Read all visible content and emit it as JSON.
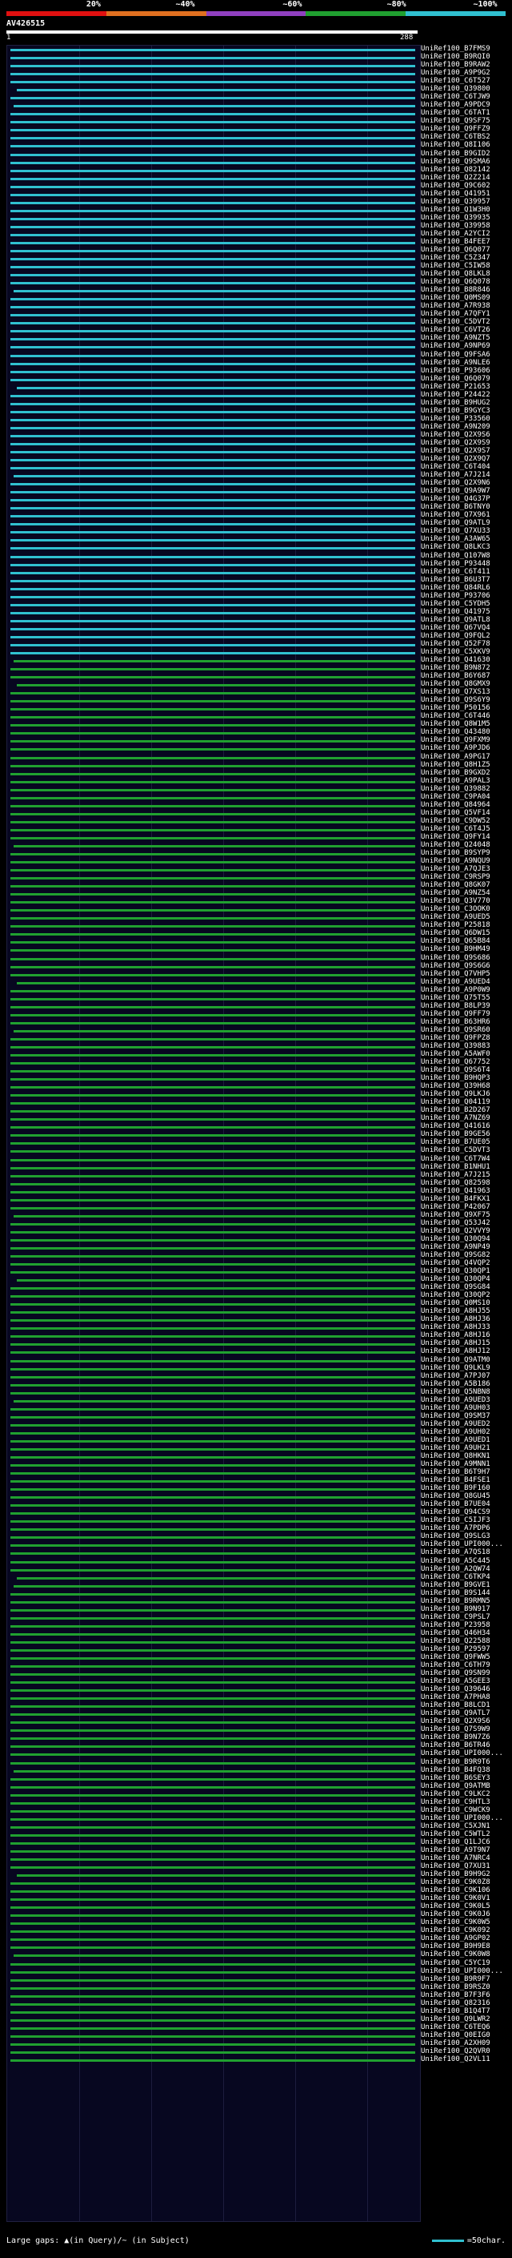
{
  "header": {
    "query_id": "AV426515",
    "query_start": "1",
    "query_end": "288",
    "percent_labels": [
      "20%",
      "~40%",
      "~60%",
      "~80%",
      "~100%"
    ],
    "percent_colors": [
      "#e01010",
      "#e07020",
      "#9040c0",
      "#20a030",
      "#30c0d0"
    ]
  },
  "hits": [
    {
      "label": "UniRef100_B7FMS9",
      "color": "#30c0d0"
    },
    {
      "label": "UniRef100_B9RQI0",
      "color": "#30c0d0"
    },
    {
      "label": "UniRef100_B9RAW2",
      "color": "#30c0d0"
    },
    {
      "label": "UniRef100_A9P9G2",
      "color": "#30c0d0"
    },
    {
      "label": "UniRef100_C6T527",
      "color": "#30c0d0"
    },
    {
      "label": "UniRef100_Q39800",
      "color": "#30c0d0"
    },
    {
      "label": "UniRef100_C6TJW9",
      "color": "#30c0d0"
    },
    {
      "label": "UniRef100_A9PDC9",
      "color": "#30c0d0"
    },
    {
      "label": "UniRef100_C6TAT1",
      "color": "#30c0d0"
    },
    {
      "label": "UniRef100_Q9SF75",
      "color": "#30c0d0"
    },
    {
      "label": "UniRef100_Q9FFZ9",
      "color": "#30c0d0"
    },
    {
      "label": "UniRef100_C6TBS2",
      "color": "#30c0d0"
    },
    {
      "label": "UniRef100_Q8I106",
      "color": "#30c0d0"
    },
    {
      "label": "UniRef100_B9GID2",
      "color": "#30c0d0"
    },
    {
      "label": "UniRef100_Q9SMA6",
      "color": "#30c0d0"
    },
    {
      "label": "UniRef100_Q82142",
      "color": "#30c0d0"
    },
    {
      "label": "UniRef100_Q2Z214",
      "color": "#30c0d0"
    },
    {
      "label": "UniRef100_Q9C602",
      "color": "#30c0d0"
    },
    {
      "label": "UniRef100_Q41951",
      "color": "#30c0d0"
    },
    {
      "label": "UniRef100_Q39957",
      "color": "#30c0d0"
    },
    {
      "label": "UniRef100_Q1W3H0",
      "color": "#30c0d0"
    },
    {
      "label": "UniRef100_Q39935",
      "color": "#30c0d0"
    },
    {
      "label": "UniRef100_Q39958",
      "color": "#30c0d0"
    },
    {
      "label": "UniRef100_A2YCI2",
      "color": "#30c0d0"
    },
    {
      "label": "UniRef100_B4FEE7",
      "color": "#30c0d0"
    },
    {
      "label": "UniRef100_Q6Q077",
      "color": "#30c0d0"
    },
    {
      "label": "UniRef100_C5Z347",
      "color": "#30c0d0"
    },
    {
      "label": "UniRef100_C5IW58",
      "color": "#30c0d0"
    },
    {
      "label": "UniRef100_Q8LKL8",
      "color": "#30c0d0"
    },
    {
      "label": "UniRef100_Q6Q078",
      "color": "#30c0d0"
    },
    {
      "label": "UniRef100_B8R846",
      "color": "#30c0d0"
    },
    {
      "label": "UniRef100_Q0MS09",
      "color": "#30c0d0"
    },
    {
      "label": "UniRef100_A7R938",
      "color": "#30c0d0"
    },
    {
      "label": "UniRef100_A7QFY1",
      "color": "#30c0d0"
    },
    {
      "label": "UniRef100_C5DVT2",
      "color": "#30c0d0"
    },
    {
      "label": "UniRef100_C6VT26",
      "color": "#30c0d0"
    },
    {
      "label": "UniRef100_A9NZT5",
      "color": "#30c0d0"
    },
    {
      "label": "UniRef100_A9NP69",
      "color": "#30c0d0"
    },
    {
      "label": "UniRef100_Q9FSA6",
      "color": "#30c0d0"
    },
    {
      "label": "UniRef100_A9NLE6",
      "color": "#30c0d0"
    },
    {
      "label": "UniRef100_P93606",
      "color": "#30c0d0"
    },
    {
      "label": "UniRef100_Q6Q079",
      "color": "#30c0d0"
    },
    {
      "label": "UniRef100_P21653",
      "color": "#30c0d0"
    },
    {
      "label": "UniRef100_P24422",
      "color": "#30c0d0"
    },
    {
      "label": "UniRef100_B9HUG2",
      "color": "#30c0d0"
    },
    {
      "label": "UniRef100_B9GYC3",
      "color": "#30c0d0"
    },
    {
      "label": "UniRef100_P33560",
      "color": "#30c0d0"
    },
    {
      "label": "UniRef100_A9N209",
      "color": "#30c0d0"
    },
    {
      "label": "UniRef100_Q2X9S6",
      "color": "#30c0d0"
    },
    {
      "label": "UniRef100_Q2X9S9",
      "color": "#30c0d0"
    },
    {
      "label": "UniRef100_Q2X9S7",
      "color": "#30c0d0"
    },
    {
      "label": "UniRef100_Q2X9Q7",
      "color": "#30c0d0"
    },
    {
      "label": "UniRef100_C6T404",
      "color": "#30c0d0"
    },
    {
      "label": "UniRef100_A7J214",
      "color": "#30c0d0"
    },
    {
      "label": "UniRef100_Q2X9N6",
      "color": "#30c0d0"
    },
    {
      "label": "UniRef100_Q9A9W7",
      "color": "#30c0d0"
    },
    {
      "label": "UniRef100_Q4G37P",
      "color": "#30c0d0"
    },
    {
      "label": "UniRef100_B6TNY0",
      "color": "#30c0d0"
    },
    {
      "label": "UniRef100_Q7X961",
      "color": "#30c0d0"
    },
    {
      "label": "UniRef100_Q9ATL9",
      "color": "#30c0d0"
    },
    {
      "label": "UniRef100_Q7XU33",
      "color": "#30c0d0"
    },
    {
      "label": "UniRef100_A3AW65",
      "color": "#30c0d0"
    },
    {
      "label": "UniRef100_Q8LKC3",
      "color": "#30c0d0"
    },
    {
      "label": "UniRef100_Q107W8",
      "color": "#30c0d0"
    },
    {
      "label": "UniRef100_P93448",
      "color": "#30c0d0"
    },
    {
      "label": "UniRef100_C6T411",
      "color": "#30c0d0"
    },
    {
      "label": "UniRef100_B6U3T7",
      "color": "#30c0d0"
    },
    {
      "label": "UniRef100_Q84RL6",
      "color": "#30c0d0"
    },
    {
      "label": "UniRef100_P93706",
      "color": "#30c0d0"
    },
    {
      "label": "UniRef100_C5YDH5",
      "color": "#30c0d0"
    },
    {
      "label": "UniRef100_Q41975",
      "color": "#30c0d0"
    },
    {
      "label": "UniRef100_Q9ATL8",
      "color": "#30c0d0"
    },
    {
      "label": "UniRef100_Q67VQ4",
      "color": "#30c0d0"
    },
    {
      "label": "UniRef100_Q9FQL2",
      "color": "#30c0d0"
    },
    {
      "label": "UniRef100_Q52F78",
      "color": "#30c0d0"
    },
    {
      "label": "UniRef100_C5XKV9",
      "color": "#30c0d0"
    },
    {
      "label": "UniRef100_Q41630",
      "color": "#20a030"
    },
    {
      "label": "UniRef100_B9N872",
      "color": "#20a030"
    },
    {
      "label": "UniRef100_B6Y687",
      "color": "#20a030"
    },
    {
      "label": "UniRef100_Q8GMX9",
      "color": "#20a030"
    },
    {
      "label": "UniRef100_Q7XS13",
      "color": "#20a030"
    },
    {
      "label": "UniRef100_Q9S6Y9",
      "color": "#20a030"
    },
    {
      "label": "UniRef100_P50156",
      "color": "#20a030"
    },
    {
      "label": "UniRef100_C6T446",
      "color": "#20a030"
    },
    {
      "label": "UniRef100_Q8W1M5",
      "color": "#20a030"
    },
    {
      "label": "UniRef100_Q43480",
      "color": "#20a030"
    },
    {
      "label": "UniRef100_Q9FXM9",
      "color": "#20a030"
    },
    {
      "label": "UniRef100_A9PJD6",
      "color": "#20a030"
    },
    {
      "label": "UniRef100_A9PG17",
      "color": "#20a030"
    },
    {
      "label": "UniRef100_Q8H1Z5",
      "color": "#20a030"
    },
    {
      "label": "UniRef100_B9GXD2",
      "color": "#20a030"
    },
    {
      "label": "UniRef100_A9PAL3",
      "color": "#20a030"
    },
    {
      "label": "UniRef100_Q39882",
      "color": "#20a030"
    },
    {
      "label": "UniRef100_C9PA04",
      "color": "#20a030"
    },
    {
      "label": "UniRef100_Q84964",
      "color": "#20a030"
    },
    {
      "label": "UniRef100_Q5VF14",
      "color": "#20a030"
    },
    {
      "label": "UniRef100_C9DW52",
      "color": "#20a030"
    },
    {
      "label": "UniRef100_C6T4J5",
      "color": "#20a030"
    },
    {
      "label": "UniRef100_Q9FY14",
      "color": "#20a030"
    },
    {
      "label": "UniRef100_Q24048",
      "color": "#20a030"
    },
    {
      "label": "UniRef100_B9SYP9",
      "color": "#20a030"
    },
    {
      "label": "UniRef100_A9NQU9",
      "color": "#20a030"
    },
    {
      "label": "UniRef100_A7QJE3",
      "color": "#20a030"
    },
    {
      "label": "UniRef100_C9RSP9",
      "color": "#20a030"
    },
    {
      "label": "UniRef100_Q8GK07",
      "color": "#20a030"
    },
    {
      "label": "UniRef100_A9NZ54",
      "color": "#20a030"
    },
    {
      "label": "UniRef100_Q3V770",
      "color": "#20a030"
    },
    {
      "label": "UniRef100_C3OOK0",
      "color": "#20a030"
    },
    {
      "label": "UniRef100_A9UED5",
      "color": "#20a030"
    },
    {
      "label": "UniRef100_P25818",
      "color": "#20a030"
    },
    {
      "label": "UniRef100_Q6DW15",
      "color": "#20a030"
    },
    {
      "label": "UniRef100_Q65B84",
      "color": "#20a030"
    },
    {
      "label": "UniRef100_B9HM49",
      "color": "#20a030"
    },
    {
      "label": "UniRef100_Q9S686",
      "color": "#20a030"
    },
    {
      "label": "UniRef100_Q9S6G6",
      "color": "#20a030"
    },
    {
      "label": "UniRef100_Q7VHP5",
      "color": "#20a030"
    },
    {
      "label": "UniRef100_A9UED4",
      "color": "#20a030"
    },
    {
      "label": "UniRef100_A9P0W9",
      "color": "#20a030"
    },
    {
      "label": "UniRef100_Q75T55",
      "color": "#20a030"
    },
    {
      "label": "UniRef100_B8LP39",
      "color": "#20a030"
    },
    {
      "label": "UniRef100_Q9FF79",
      "color": "#20a030"
    },
    {
      "label": "UniRef100_B63HR6",
      "color": "#20a030"
    },
    {
      "label": "UniRef100_Q9SR60",
      "color": "#20a030"
    },
    {
      "label": "UniRef100_Q9FPZ8",
      "color": "#20a030"
    },
    {
      "label": "UniRef100_Q39883",
      "color": "#20a030"
    },
    {
      "label": "UniRef100_A5AWF0",
      "color": "#20a030"
    },
    {
      "label": "UniRef100_Q67752",
      "color": "#20a030"
    },
    {
      "label": "UniRef100_Q9S6T4",
      "color": "#20a030"
    },
    {
      "label": "UniRef100_B9HQP3",
      "color": "#20a030"
    },
    {
      "label": "UniRef100_Q39H68",
      "color": "#20a030"
    },
    {
      "label": "UniRef100_Q9LKJ6",
      "color": "#20a030"
    },
    {
      "label": "UniRef100_Q04119",
      "color": "#20a030"
    },
    {
      "label": "UniRef100_B2D267",
      "color": "#20a030"
    },
    {
      "label": "UniRef100_A7NZ69",
      "color": "#20a030"
    },
    {
      "label": "UniRef100_Q41616",
      "color": "#20a030"
    },
    {
      "label": "UniRef100_B9GE56",
      "color": "#20a030"
    },
    {
      "label": "UniRef100_B7UE05",
      "color": "#20a030"
    },
    {
      "label": "UniRef100_C5DVT3",
      "color": "#20a030"
    },
    {
      "label": "UniRef100_C6T7W4",
      "color": "#20a030"
    },
    {
      "label": "UniRef100_B1NHU1",
      "color": "#20a030"
    },
    {
      "label": "UniRef100_A7J215",
      "color": "#20a030"
    },
    {
      "label": "UniRef100_Q82598",
      "color": "#20a030"
    },
    {
      "label": "UniRef100_Q41963",
      "color": "#20a030"
    },
    {
      "label": "UniRef100_B4FKX1",
      "color": "#20a030"
    },
    {
      "label": "UniRef100_P42067",
      "color": "#20a030"
    },
    {
      "label": "UniRef100_Q9XF75",
      "color": "#20a030"
    },
    {
      "label": "UniRef100_Q53J42",
      "color": "#20a030"
    },
    {
      "label": "UniRef100_Q2VVY9",
      "color": "#20a030"
    },
    {
      "label": "UniRef100_Q30Q94",
      "color": "#20a030"
    },
    {
      "label": "UniRef100_A9NP49",
      "color": "#20a030"
    },
    {
      "label": "UniRef100_Q9SG82",
      "color": "#20a030"
    },
    {
      "label": "UniRef100_Q4VQP2",
      "color": "#20a030"
    },
    {
      "label": "UniRef100_Q30QP1",
      "color": "#20a030"
    },
    {
      "label": "UniRef100_Q30QP4",
      "color": "#20a030"
    },
    {
      "label": "UniRef100_Q9SG84",
      "color": "#20a030"
    },
    {
      "label": "UniRef100_Q30QP2",
      "color": "#20a030"
    },
    {
      "label": "UniRef100_Q0MS10",
      "color": "#20a030"
    },
    {
      "label": "UniRef100_A8HJ55",
      "color": "#20a030"
    },
    {
      "label": "UniRef100_A8HJ36",
      "color": "#20a030"
    },
    {
      "label": "UniRef100_A8HJ33",
      "color": "#20a030"
    },
    {
      "label": "UniRef100_A8HJ16",
      "color": "#20a030"
    },
    {
      "label": "UniRef100_A8HJ15",
      "color": "#20a030"
    },
    {
      "label": "UniRef100_A8HJ12",
      "color": "#20a030"
    },
    {
      "label": "UniRef100_Q9ATM0",
      "color": "#20a030"
    },
    {
      "label": "UniRef100_Q9LKL9",
      "color": "#20a030"
    },
    {
      "label": "UniRef100_A7PJ07",
      "color": "#20a030"
    },
    {
      "label": "UniRef100_A5B186",
      "color": "#20a030"
    },
    {
      "label": "UniRef100_Q5NBN8",
      "color": "#20a030"
    },
    {
      "label": "UniRef100_A9UED3",
      "color": "#20a030"
    },
    {
      "label": "UniRef100_A9UH03",
      "color": "#20a030"
    },
    {
      "label": "UniRef100_Q9SM37",
      "color": "#20a030"
    },
    {
      "label": "UniRef100_A9UED2",
      "color": "#20a030"
    },
    {
      "label": "UniRef100_A9UH02",
      "color": "#20a030"
    },
    {
      "label": "UniRef100_A9UED1",
      "color": "#20a030"
    },
    {
      "label": "UniRef100_A9UH21",
      "color": "#20a030"
    },
    {
      "label": "UniRef100_Q8HKN1",
      "color": "#20a030"
    },
    {
      "label": "UniRef100_A9MNN1",
      "color": "#20a030"
    },
    {
      "label": "UniRef100_B6T9H7",
      "color": "#20a030"
    },
    {
      "label": "UniRef100_B4FSE1",
      "color": "#20a030"
    },
    {
      "label": "UniRef100_B9F160",
      "color": "#20a030"
    },
    {
      "label": "UniRef100_Q8GU45",
      "color": "#20a030"
    },
    {
      "label": "UniRef100_B7UE04",
      "color": "#20a030"
    },
    {
      "label": "UniRef100_Q94CS9",
      "color": "#20a030"
    },
    {
      "label": "UniRef100_C5IJF3",
      "color": "#20a030"
    },
    {
      "label": "UniRef100_A7PDP6",
      "color": "#20a030"
    },
    {
      "label": "UniRef100_Q9SLG3",
      "color": "#20a030"
    },
    {
      "label": "UniRef100_UPI000...",
      "color": "#20a030"
    },
    {
      "label": "UniRef100_A7QS18",
      "color": "#20a030"
    },
    {
      "label": "UniRef100_A5C445",
      "color": "#20a030"
    },
    {
      "label": "UniRef100_A2QW74",
      "color": "#20a030"
    },
    {
      "label": "UniRef100_C6TKP4",
      "color": "#20a030"
    },
    {
      "label": "UniRef100_B9GVE1",
      "color": "#20a030"
    },
    {
      "label": "UniRef100_B9S144",
      "color": "#20a030"
    },
    {
      "label": "UniRef100_B9RMN5",
      "color": "#20a030"
    },
    {
      "label": "UniRef100_B9N917",
      "color": "#20a030"
    },
    {
      "label": "UniRef100_C9PSL7",
      "color": "#20a030"
    },
    {
      "label": "UniRef100_P23958",
      "color": "#20a030"
    },
    {
      "label": "UniRef100_Q46H34",
      "color": "#20a030"
    },
    {
      "label": "UniRef100_Q22588",
      "color": "#20a030"
    },
    {
      "label": "UniRef100_P29597",
      "color": "#20a030"
    },
    {
      "label": "UniRef100_Q9FWW5",
      "color": "#20a030"
    },
    {
      "label": "UniRef100_C6TH79",
      "color": "#20a030"
    },
    {
      "label": "UniRef100_Q9SN99",
      "color": "#20a030"
    },
    {
      "label": "UniRef100_A5GEE3",
      "color": "#20a030"
    },
    {
      "label": "UniRef100_Q39646",
      "color": "#20a030"
    },
    {
      "label": "UniRef100_A7PHA8",
      "color": "#20a030"
    },
    {
      "label": "UniRef100_B8LCD1",
      "color": "#20a030"
    },
    {
      "label": "UniRef100_Q9ATL7",
      "color": "#20a030"
    },
    {
      "label": "UniRef100_Q2X9S6",
      "color": "#20a030"
    },
    {
      "label": "UniRef100_Q7S9W9",
      "color": "#20a030"
    },
    {
      "label": "UniRef100_B9N7Z6",
      "color": "#20a030"
    },
    {
      "label": "UniRef100_B6TR46",
      "color": "#20a030"
    },
    {
      "label": "UniRef100_UPI000...",
      "color": "#20a030"
    },
    {
      "label": "UniRef100_B9R9T6",
      "color": "#20a030"
    },
    {
      "label": "UniRef100_B4FQ38",
      "color": "#20a030"
    },
    {
      "label": "UniRef100_B6SEY3",
      "color": "#20a030"
    },
    {
      "label": "UniRef100_Q9ATMB",
      "color": "#20a030"
    },
    {
      "label": "UniRef100_C9LKC2",
      "color": "#20a030"
    },
    {
      "label": "UniRef100_C9HTL3",
      "color": "#20a030"
    },
    {
      "label": "UniRef100_C9WCK9",
      "color": "#20a030"
    },
    {
      "label": "UniRef100_UPI000...",
      "color": "#20a030"
    },
    {
      "label": "UniRef100_C5XJN1",
      "color": "#20a030"
    },
    {
      "label": "UniRef100_C5WTL2",
      "color": "#20a030"
    },
    {
      "label": "UniRef100_Q1LJC6",
      "color": "#20a030"
    },
    {
      "label": "UniRef100_A9T9N7",
      "color": "#20a030"
    },
    {
      "label": "UniRef100_A7NRC4",
      "color": "#20a030"
    },
    {
      "label": "UniRef100_Q7XU31",
      "color": "#20a030"
    },
    {
      "label": "UniRef100_B9H9G2",
      "color": "#20a030"
    },
    {
      "label": "UniRef100_C9K0Z8",
      "color": "#20a030"
    },
    {
      "label": "UniRef100_C9K106",
      "color": "#20a030"
    },
    {
      "label": "UniRef100_C9K0V1",
      "color": "#20a030"
    },
    {
      "label": "UniRef100_C9K0L5",
      "color": "#20a030"
    },
    {
      "label": "UniRef100_C9K0J6",
      "color": "#20a030"
    },
    {
      "label": "UniRef100_C9K0W5",
      "color": "#20a030"
    },
    {
      "label": "UniRef100_C9K092",
      "color": "#20a030"
    },
    {
      "label": "UniRef100_A9GP02",
      "color": "#20a030"
    },
    {
      "label": "UniRef100_B9H9E8",
      "color": "#20a030"
    },
    {
      "label": "UniRef100_C9K0W8",
      "color": "#20a030"
    },
    {
      "label": "UniRef100_C5YC19",
      "color": "#20a030"
    },
    {
      "label": "UniRef100_UPI000...",
      "color": "#20a030"
    },
    {
      "label": "UniRef100_B9R9F7",
      "color": "#20a030"
    },
    {
      "label": "UniRef100_B9RSZ0",
      "color": "#20a030"
    },
    {
      "label": "UniRef100_B7F3F6",
      "color": "#20a030"
    },
    {
      "label": "UniRef100_Q82316",
      "color": "#20a030"
    },
    {
      "label": "UniRef100_B1Q4T7",
      "color": "#20a030"
    },
    {
      "label": "UniRef100_Q9LWR2",
      "color": "#20a030"
    },
    {
      "label": "UniRef100_C6TEQ6",
      "color": "#20a030"
    },
    {
      "label": "UniRef100_Q0EIG0",
      "color": "#20a030"
    },
    {
      "label": "UniRef100_A2XH09",
      "color": "#20a030"
    },
    {
      "label": "UniRef100_Q2QVR0",
      "color": "#20a030"
    },
    {
      "label": "UniRef100_Q2VL11",
      "color": "#20a030"
    }
  ],
  "footer": {
    "text": "Large gaps: ▲(in Query)/~ (in Subject)",
    "scale_text": "=50char."
  }
}
